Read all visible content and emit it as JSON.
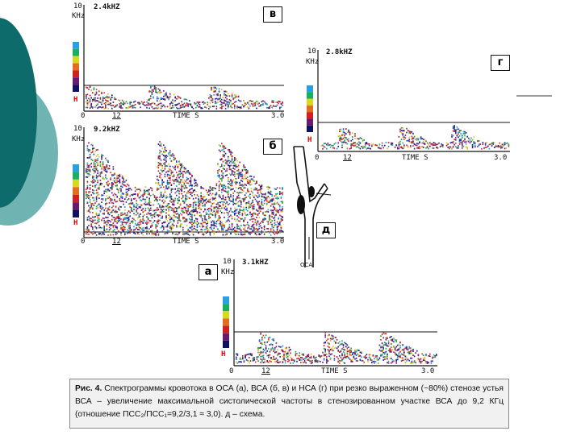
{
  "colors": {
    "teal_dark": "#0e6b6b",
    "teal_light": "#6fb3b3",
    "bg": "#ffffff"
  },
  "panels": {
    "v": {
      "letter": "в",
      "freq": "2.4kHZ",
      "y_top": "10",
      "y_unit": "KHz",
      "h_mark": "H",
      "x_zero": "0",
      "x_tick": "12",
      "x_label": "TIME S",
      "x_end": "3.0"
    },
    "b": {
      "letter": "б",
      "freq": "9.2kHZ",
      "y_top": "10",
      "y_unit": "KHz",
      "h_mark": "H",
      "x_zero": "0",
      "x_tick": "12",
      "x_label": "TIME S",
      "x_end": "3.0"
    },
    "g": {
      "letter": "г",
      "freq": "2.8kHZ",
      "y_top": "10",
      "y_unit": "KHz",
      "h_mark": "H",
      "x_zero": "0",
      "x_tick": "12",
      "x_label": "TIME S",
      "x_end": "3.0"
    },
    "a": {
      "letter": "а",
      "freq": "3.1kHZ",
      "y_top": "10",
      "y_unit": "KHz",
      "h_mark": "H",
      "x_zero": "0",
      "x_tick": "12",
      "x_label": "TIME S",
      "x_end": "3.0"
    }
  },
  "schema": {
    "letter": "д",
    "label": "ОСА"
  },
  "caption": {
    "bold": "Рис. 4.",
    "text": " Спектрограммы кровотока в ОСА (а), ВСА (б, в) и НСА (г) при резко выраженном (~80%) стенозе устья ВСА – увеличение максимальной систолической частоты в стенозированном участке ВСА до 9,2 КГц (отношение ПСС₂/ПСС₁=9,2/3,1 ≈ 3,0). д – схема."
  }
}
